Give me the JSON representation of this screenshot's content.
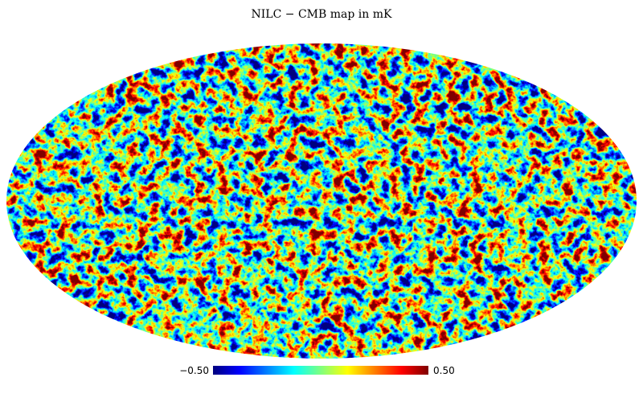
{
  "chart_data": {
    "type": "mollweide",
    "title": "NILC − CMB map in mK",
    "colormap": "jet",
    "colorbar": {
      "lim": [
        -0.5,
        0.5
      ],
      "ticks": [
        {
          "value": -0.5,
          "label": "−0.50"
        },
        {
          "value": 0.5,
          "label": "0.50"
        }
      ],
      "colors": [
        "#00007f",
        "#0000ff",
        "#007fff",
        "#00ffff",
        "#7fff7f",
        "#ffff00",
        "#ff7f00",
        "#ff0000",
        "#7f0000"
      ]
    }
  }
}
